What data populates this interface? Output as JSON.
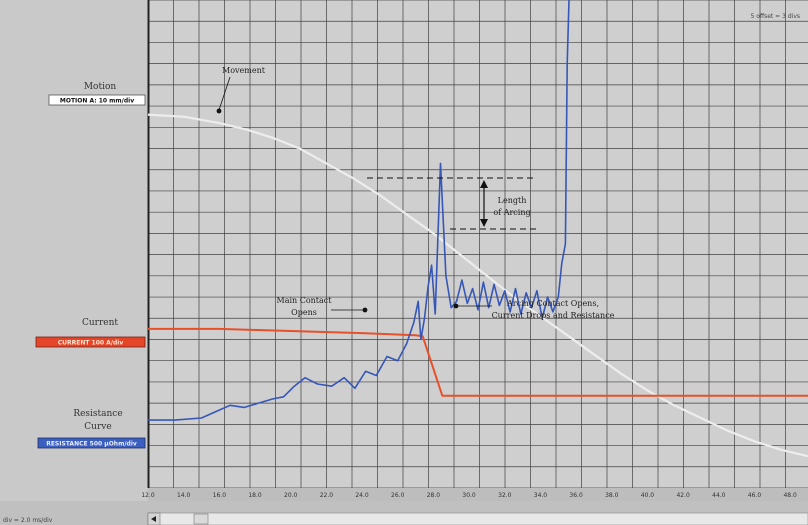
{
  "header": {
    "top_right": "5 offset = 3 divs"
  },
  "channels": {
    "motion": {
      "label": "Motion",
      "badge": "MOTION A: 10 mm/div",
      "badge_bg": "#ffffff",
      "badge_fg": "#111111"
    },
    "current": {
      "label": "Current",
      "badge": "CURRENT 100 A/div",
      "badge_bg": "#e5462a",
      "badge_fg": "#ffe7d5"
    },
    "resistance": {
      "label_line1": "Resistance",
      "label_line2": "Curve",
      "badge": "RESISTANCE 500 µOhm/div",
      "badge_bg": "#3b5fc0",
      "badge_fg": "#e8eeff"
    }
  },
  "annotations": {
    "movement": "Movement",
    "length_line1": "Length",
    "length_line2": "of Arcing",
    "main_line1": "Main Contact",
    "main_line2": "Opens",
    "arcing_line1": "Arcing Contact  Opens,",
    "arcing_line2": "Current Drops and Resistance"
  },
  "statusbar": {
    "left_text": "div = 2.0 ms/div"
  },
  "colors": {
    "motion": "#ededed",
    "current": "#e8502a",
    "resistance": "#3657b8",
    "grid": "#404040",
    "plot_bg": "#cfcfcf"
  },
  "chart_data": {
    "type": "line",
    "x_unit": "ms",
    "xlim": [
      12.0,
      49.0
    ],
    "x_ticks": [
      12.0,
      14.0,
      16.0,
      18.0,
      20.0,
      22.0,
      24.0,
      26.0,
      28.0,
      30.0,
      32.0,
      34.0,
      36.0,
      38.0,
      40.0,
      42.0,
      44.0,
      46.0,
      48.0
    ],
    "x_tick_labels": [
      "12.0",
      "14.0",
      "16.0",
      "18.0",
      "20.0",
      "22.0",
      "24.0",
      "26.0",
      "28.0",
      "30.0",
      "32.0",
      "34.0",
      "36.0",
      "38.0",
      "40.0",
      "42.0",
      "44.0",
      "46.0",
      "48.0"
    ],
    "ylim": [
      0,
      23
    ],
    "y_unit": "div",
    "series": [
      {
        "name": "Motion",
        "color": "#ededed",
        "x": [
          12.0,
          14.0,
          16.0,
          17.5,
          19.0,
          20.5,
          22.0,
          23.5,
          25.0,
          26.5,
          28.0,
          29.5,
          31.0,
          32.5,
          34.0,
          35.5,
          37.0,
          38.5,
          40.0,
          41.5,
          43.0,
          44.5,
          46.0,
          47.5,
          49.0
        ],
        "y": [
          17.6,
          17.5,
          17.2,
          16.9,
          16.5,
          16.0,
          15.3,
          14.6,
          13.8,
          12.9,
          12.0,
          11.0,
          10.0,
          9.0,
          8.1,
          7.2,
          6.3,
          5.4,
          4.6,
          3.9,
          3.3,
          2.7,
          2.2,
          1.8,
          1.5
        ]
      },
      {
        "name": "Current",
        "color": "#e8502a",
        "x": [
          12.0,
          16.0,
          20.0,
          24.0,
          27.0,
          27.4,
          28.5,
          30.0,
          35.0,
          40.0,
          45.0,
          49.0
        ],
        "y": [
          7.5,
          7.5,
          7.4,
          7.3,
          7.2,
          7.15,
          4.35,
          4.35,
          4.35,
          4.35,
          4.35,
          4.35
        ]
      },
      {
        "name": "Resistance",
        "color": "#3657b8",
        "x": [
          12.0,
          13.5,
          15.0,
          15.8,
          16.6,
          17.4,
          18.2,
          19.0,
          19.6,
          20.2,
          20.8,
          21.5,
          22.3,
          23.0,
          23.6,
          24.2,
          24.8,
          25.4,
          26.0,
          26.5,
          26.9,
          27.15,
          27.3,
          27.5,
          27.7,
          27.9,
          28.1,
          28.4,
          28.7,
          29.0,
          29.3,
          29.6,
          29.9,
          30.2,
          30.5,
          30.8,
          31.1,
          31.4,
          31.7,
          32.0,
          32.3,
          32.6,
          32.9,
          33.2,
          33.5,
          33.8,
          34.1,
          34.4,
          34.7,
          35.0,
          35.2,
          35.4,
          35.5,
          35.6
        ],
        "y": [
          3.2,
          3.2,
          3.3,
          3.6,
          3.9,
          3.8,
          4.0,
          4.2,
          4.3,
          4.8,
          5.2,
          4.9,
          4.8,
          5.2,
          4.7,
          5.5,
          5.3,
          6.2,
          6.0,
          6.8,
          7.8,
          8.8,
          7.0,
          8.0,
          9.5,
          10.5,
          8.2,
          15.3,
          10.0,
          8.5,
          8.8,
          9.8,
          8.7,
          9.4,
          8.4,
          9.7,
          8.5,
          9.6,
          8.6,
          9.3,
          8.3,
          9.4,
          8.2,
          9.2,
          8.5,
          9.3,
          8.0,
          9.0,
          8.3,
          9.0,
          10.6,
          11.5,
          20.0,
          23.0
        ]
      }
    ]
  }
}
